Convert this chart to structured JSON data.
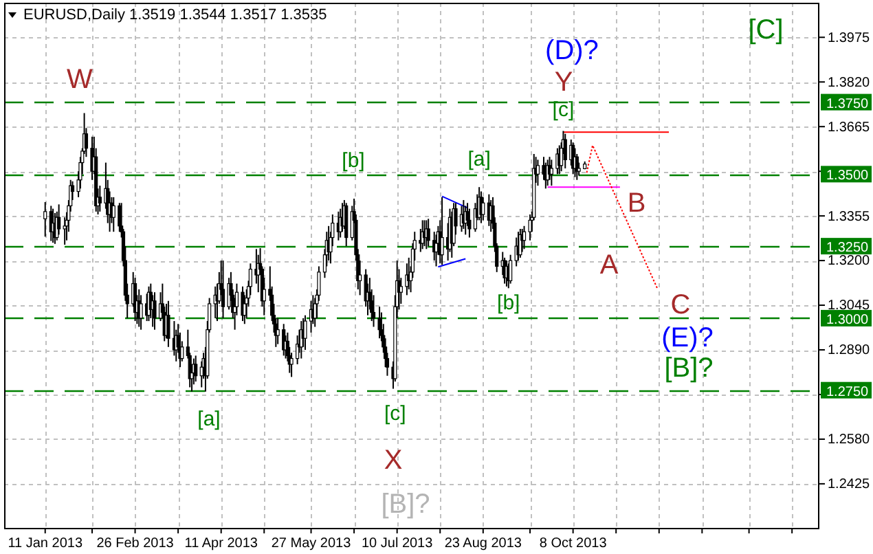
{
  "chart_data": {
    "type": "candlestick",
    "title": "EURUSD,Daily 1.3519 1.3544 1.3517 1.3535",
    "color": "#000000",
    "x": [
      "2013-01-11",
      "2013-01-14",
      "2013-01-15",
      "2013-01-16",
      "2013-01-17",
      "2013-01-18",
      "2013-01-21",
      "2013-01-22",
      "2013-01-23",
      "2013-01-24",
      "2013-01-25",
      "2013-01-28",
      "2013-01-29",
      "2013-01-30",
      "2013-01-31",
      "2013-02-01",
      "2013-02-04",
      "2013-02-05",
      "2013-02-06",
      "2013-02-07",
      "2013-02-08",
      "2013-02-11",
      "2013-02-12",
      "2013-02-13",
      "2013-02-14",
      "2013-02-15",
      "2013-02-18",
      "2013-02-19",
      "2013-02-20",
      "2013-02-21",
      "2013-02-22",
      "2013-02-25",
      "2013-02-26",
      "2013-02-27",
      "2013-02-28",
      "2013-03-01",
      "2013-03-04",
      "2013-03-05",
      "2013-03-06",
      "2013-03-07",
      "2013-03-08",
      "2013-03-11",
      "2013-03-12",
      "2013-03-13",
      "2013-03-14",
      "2013-03-15",
      "2013-03-18",
      "2013-03-19",
      "2013-03-20",
      "2013-03-21",
      "2013-03-22",
      "2013-03-25",
      "2013-03-26",
      "2013-03-27",
      "2013-03-28",
      "2013-03-29",
      "2013-04-01",
      "2013-04-02",
      "2013-04-03",
      "2013-04-04",
      "2013-04-05",
      "2013-04-08",
      "2013-04-09",
      "2013-04-10",
      "2013-04-11",
      "2013-04-12",
      "2013-04-15",
      "2013-04-16",
      "2013-04-17",
      "2013-04-18",
      "2013-04-19",
      "2013-04-22",
      "2013-04-23",
      "2013-04-24",
      "2013-04-25",
      "2013-04-26",
      "2013-04-29",
      "2013-04-30",
      "2013-05-01",
      "2013-05-02",
      "2013-05-03",
      "2013-05-06",
      "2013-05-07",
      "2013-05-08",
      "2013-05-09",
      "2013-05-10",
      "2013-05-13",
      "2013-05-14",
      "2013-05-15",
      "2013-05-16",
      "2013-05-17",
      "2013-05-20",
      "2013-05-21",
      "2013-05-22",
      "2013-05-23",
      "2013-05-24",
      "2013-05-27",
      "2013-05-28",
      "2013-05-29",
      "2013-05-30",
      "2013-05-31",
      "2013-06-03",
      "2013-06-04",
      "2013-06-05",
      "2013-06-06",
      "2013-06-07",
      "2013-06-10",
      "2013-06-11",
      "2013-06-12",
      "2013-06-13",
      "2013-06-14",
      "2013-06-17",
      "2013-06-18",
      "2013-06-19",
      "2013-06-20",
      "2013-06-21",
      "2013-06-24",
      "2013-06-25",
      "2013-06-26",
      "2013-06-27",
      "2013-06-28",
      "2013-07-01",
      "2013-07-02",
      "2013-07-03",
      "2013-07-04",
      "2013-07-05",
      "2013-07-08",
      "2013-07-09",
      "2013-07-10",
      "2013-07-11",
      "2013-07-12",
      "2013-07-15",
      "2013-07-16",
      "2013-07-17",
      "2013-07-18",
      "2013-07-19",
      "2013-07-22",
      "2013-07-23",
      "2013-07-24",
      "2013-07-25",
      "2013-07-26",
      "2013-07-29",
      "2013-07-30",
      "2013-07-31",
      "2013-08-01",
      "2013-08-02",
      "2013-08-05",
      "2013-08-06",
      "2013-08-07",
      "2013-08-08",
      "2013-08-09",
      "2013-08-12",
      "2013-08-13",
      "2013-08-14",
      "2013-08-15",
      "2013-08-16",
      "2013-08-19",
      "2013-08-20",
      "2013-08-21",
      "2013-08-22",
      "2013-08-23",
      "2013-08-26",
      "2013-08-27",
      "2013-08-28",
      "2013-08-29",
      "2013-08-30",
      "2013-09-02",
      "2013-09-03",
      "2013-09-04",
      "2013-09-05",
      "2013-09-06",
      "2013-09-09",
      "2013-09-10",
      "2013-09-11",
      "2013-09-12",
      "2013-09-13",
      "2013-09-16",
      "2013-09-17",
      "2013-09-18",
      "2013-09-19",
      "2013-09-20",
      "2013-09-23",
      "2013-09-24",
      "2013-09-25",
      "2013-09-26",
      "2013-09-27",
      "2013-09-30",
      "2013-10-01",
      "2013-10-02",
      "2013-10-03",
      "2013-10-04",
      "2013-10-07",
      "2013-10-08",
      "2013-10-09",
      "2013-10-10",
      "2013-10-11",
      "2013-10-14"
    ],
    "ohlc": [
      [
        1.3345,
        1.3403,
        1.3283,
        1.337
      ],
      [
        1.337,
        1.339,
        1.3268,
        1.33
      ],
      [
        1.33,
        1.338,
        1.3262,
        1.333
      ],
      [
        1.333,
        1.3365,
        1.3258,
        1.328
      ],
      [
        1.328,
        1.337,
        1.327,
        1.335
      ],
      [
        1.335,
        1.3395,
        1.329,
        1.331
      ],
      [
        1.331,
        1.335,
        1.3255,
        1.332
      ],
      [
        1.332,
        1.3368,
        1.327,
        1.334
      ],
      [
        1.334,
        1.341,
        1.33,
        1.339
      ],
      [
        1.339,
        1.348,
        1.337,
        1.346
      ],
      [
        1.346,
        1.3475,
        1.341,
        1.344
      ],
      [
        1.344,
        1.351,
        1.342,
        1.348
      ],
      [
        1.348,
        1.356,
        1.345,
        1.354
      ],
      [
        1.354,
        1.359,
        1.35,
        1.358
      ],
      [
        1.358,
        1.3712,
        1.357,
        1.364
      ],
      [
        1.364,
        1.366,
        1.356,
        1.359
      ],
      [
        1.359,
        1.363,
        1.348,
        1.351
      ],
      [
        1.351,
        1.363,
        1.35,
        1.356
      ],
      [
        1.356,
        1.359,
        1.337,
        1.339
      ],
      [
        1.339,
        1.345,
        1.336,
        1.342
      ],
      [
        1.342,
        1.346,
        1.337,
        1.34
      ],
      [
        1.34,
        1.354,
        1.338,
        1.345
      ],
      [
        1.345,
        1.348,
        1.333,
        1.336
      ],
      [
        1.336,
        1.344,
        1.33,
        1.34
      ],
      [
        1.34,
        1.342,
        1.333,
        1.335
      ],
      [
        1.335,
        1.342,
        1.33,
        1.339
      ],
      [
        1.339,
        1.34,
        1.33,
        1.332
      ],
      [
        1.332,
        1.34,
        1.328,
        1.33
      ],
      [
        1.33,
        1.331,
        1.318,
        1.32
      ],
      [
        1.32,
        1.325,
        1.306,
        1.308
      ],
      [
        1.308,
        1.312,
        1.3,
        1.305
      ],
      [
        1.305,
        1.316,
        1.304,
        1.312
      ],
      [
        1.312,
        1.314,
        1.299,
        1.302
      ],
      [
        1.302,
        1.308,
        1.298,
        1.306
      ],
      [
        1.306,
        1.31,
        1.297,
        1.3
      ],
      [
        1.3,
        1.308,
        1.296,
        1.305
      ],
      [
        1.305,
        1.3085,
        1.299,
        1.301
      ],
      [
        1.301,
        1.311,
        1.299,
        1.309
      ],
      [
        1.309,
        1.312,
        1.3,
        1.303
      ],
      [
        1.303,
        1.308,
        1.297,
        1.306
      ],
      [
        1.306,
        1.309,
        1.296,
        1.3
      ],
      [
        1.3,
        1.309,
        1.299,
        1.305
      ],
      [
        1.305,
        1.312,
        1.3,
        1.302
      ],
      [
        1.302,
        1.304,
        1.292,
        1.294
      ],
      [
        1.294,
        1.305,
        1.293,
        1.301
      ],
      [
        1.301,
        1.306,
        1.29,
        1.293
      ],
      [
        1.293,
        1.299,
        1.287,
        1.289
      ],
      [
        1.289,
        1.296,
        1.285,
        1.294
      ],
      [
        1.294,
        1.298,
        1.288,
        1.29
      ],
      [
        1.29,
        1.295,
        1.283,
        1.286
      ],
      [
        1.286,
        1.292,
        1.285,
        1.29
      ],
      [
        1.29,
        1.296,
        1.286,
        1.287
      ],
      [
        1.287,
        1.288,
        1.276,
        1.279
      ],
      [
        1.279,
        1.284,
        1.2745,
        1.281
      ],
      [
        1.281,
        1.286,
        1.277,
        1.284
      ],
      [
        1.284,
        1.287,
        1.278,
        1.28
      ],
      [
        1.28,
        1.285,
        1.276,
        1.283
      ],
      [
        1.283,
        1.288,
        1.279,
        1.286
      ],
      [
        1.286,
        1.29,
        1.2745,
        1.28
      ],
      [
        1.28,
        1.299,
        1.279,
        1.296
      ],
      [
        1.296,
        1.307,
        1.295,
        1.305
      ],
      [
        1.305,
        1.311,
        1.3,
        1.308
      ],
      [
        1.308,
        1.312,
        1.299,
        1.306
      ],
      [
        1.306,
        1.316,
        1.305,
        1.312
      ],
      [
        1.312,
        1.32,
        1.308,
        1.31
      ],
      [
        1.31,
        1.32,
        1.3,
        1.304
      ],
      [
        1.304,
        1.314,
        1.303,
        1.312
      ],
      [
        1.312,
        1.316,
        1.306,
        1.308
      ],
      [
        1.308,
        1.31,
        1.3,
        1.302
      ],
      [
        1.302,
        1.307,
        1.296,
        1.304
      ],
      [
        1.304,
        1.312,
        1.301,
        1.309
      ],
      [
        1.309,
        1.311,
        1.299,
        1.301
      ],
      [
        1.301,
        1.308,
        1.298,
        1.305
      ],
      [
        1.305,
        1.31,
        1.3,
        1.307
      ],
      [
        1.307,
        1.313,
        1.304,
        1.311
      ],
      [
        1.311,
        1.319,
        1.308,
        1.317
      ],
      [
        1.317,
        1.324,
        1.312,
        1.315
      ],
      [
        1.315,
        1.322,
        1.309,
        1.319
      ],
      [
        1.319,
        1.3243,
        1.315,
        1.317
      ],
      [
        1.317,
        1.318,
        1.304,
        1.306
      ],
      [
        1.306,
        1.314,
        1.301,
        1.31
      ],
      [
        1.31,
        1.318,
        1.306,
        1.308
      ],
      [
        1.308,
        1.311,
        1.299,
        1.301
      ],
      [
        1.301,
        1.305,
        1.295,
        1.298
      ],
      [
        1.298,
        1.3,
        1.29,
        1.294
      ],
      [
        1.294,
        1.3,
        1.291,
        1.296
      ],
      [
        1.296,
        1.298,
        1.287,
        1.289
      ],
      [
        1.289,
        1.294,
        1.286,
        1.292
      ],
      [
        1.292,
        1.295,
        1.285,
        1.287
      ],
      [
        1.287,
        1.29,
        1.281,
        1.284
      ],
      [
        1.284,
        1.288,
        1.2796,
        1.286
      ],
      [
        1.286,
        1.294,
        1.284,
        1.291
      ],
      [
        1.291,
        1.296,
        1.288,
        1.29
      ],
      [
        1.29,
        1.299,
        1.286,
        1.296
      ],
      [
        1.296,
        1.3,
        1.29,
        1.293
      ],
      [
        1.293,
        1.301,
        1.289,
        1.299
      ],
      [
        1.299,
        1.306,
        1.295,
        1.303
      ],
      [
        1.303,
        1.308,
        1.298,
        1.3
      ],
      [
        1.3,
        1.307,
        1.297,
        1.305
      ],
      [
        1.305,
        1.31,
        1.3,
        1.308
      ],
      [
        1.308,
        1.318,
        1.306,
        1.316
      ],
      [
        1.316,
        1.324,
        1.314,
        1.322
      ],
      [
        1.322,
        1.33,
        1.318,
        1.327
      ],
      [
        1.327,
        1.332,
        1.32,
        1.323
      ],
      [
        1.323,
        1.33,
        1.319,
        1.328
      ],
      [
        1.328,
        1.336,
        1.325,
        1.333
      ],
      [
        1.333,
        1.337,
        1.327,
        1.33
      ],
      [
        1.33,
        1.338,
        1.328,
        1.335
      ],
      [
        1.335,
        1.34,
        1.33,
        1.332
      ],
      [
        1.332,
        1.341,
        1.331,
        1.339
      ],
      [
        1.339,
        1.34,
        1.325,
        1.328
      ],
      [
        1.328,
        1.339,
        1.327,
        1.337
      ],
      [
        1.337,
        1.3415,
        1.333,
        1.334
      ],
      [
        1.334,
        1.336,
        1.32,
        1.322
      ],
      [
        1.322,
        1.324,
        1.31,
        1.313
      ],
      [
        1.313,
        1.32,
        1.308,
        1.315
      ],
      [
        1.315,
        1.317,
        1.304,
        1.306
      ],
      [
        1.306,
        1.312,
        1.301,
        1.309
      ],
      [
        1.309,
        1.314,
        1.303,
        1.306
      ],
      [
        1.306,
        1.31,
        1.299,
        1.302
      ],
      [
        1.302,
        1.308,
        1.297,
        1.3
      ],
      [
        1.3,
        1.304,
        1.293,
        1.296
      ],
      [
        1.296,
        1.302,
        1.292,
        1.294
      ],
      [
        1.294,
        1.298,
        1.288,
        1.29
      ],
      [
        1.29,
        1.293,
        1.283,
        1.286
      ],
      [
        1.286,
        1.288,
        1.28,
        1.283
      ],
      [
        1.283,
        1.285,
        1.2755,
        1.279
      ],
      [
        1.279,
        1.308,
        1.278,
        1.304
      ],
      [
        1.304,
        1.32,
        1.3,
        1.313
      ],
      [
        1.313,
        1.317,
        1.303,
        1.309
      ],
      [
        1.309,
        1.314,
        1.305,
        1.311
      ],
      [
        1.311,
        1.319,
        1.308,
        1.315
      ],
      [
        1.315,
        1.321,
        1.31,
        1.313
      ],
      [
        1.313,
        1.318,
        1.309,
        1.316
      ],
      [
        1.316,
        1.326,
        1.314,
        1.324
      ],
      [
        1.324,
        1.33,
        1.32,
        1.327
      ],
      [
        1.327,
        1.331,
        1.323,
        1.326
      ],
      [
        1.326,
        1.334,
        1.324,
        1.33
      ],
      [
        1.33,
        1.334,
        1.325,
        1.328
      ],
      [
        1.328,
        1.334,
        1.324,
        1.331
      ],
      [
        1.331,
        1.3345,
        1.325,
        1.327
      ],
      [
        1.327,
        1.33,
        1.32,
        1.323
      ],
      [
        1.323,
        1.329,
        1.318,
        1.326
      ],
      [
        1.326,
        1.332,
        1.322,
        1.33
      ],
      [
        1.33,
        1.334,
        1.319,
        1.322
      ],
      [
        1.322,
        1.342,
        1.3185,
        1.328
      ],
      [
        1.328,
        1.333,
        1.32,
        1.324
      ],
      [
        1.324,
        1.338,
        1.323,
        1.335
      ],
      [
        1.335,
        1.337,
        1.321,
        1.326
      ],
      [
        1.326,
        1.34,
        1.325,
        1.338
      ],
      [
        1.338,
        1.34,
        1.329,
        1.332
      ],
      [
        1.332,
        1.339,
        1.33,
        1.336
      ],
      [
        1.336,
        1.341,
        1.331,
        1.333
      ],
      [
        1.333,
        1.339,
        1.329,
        1.337
      ],
      [
        1.337,
        1.34,
        1.332,
        1.334
      ],
      [
        1.334,
        1.338,
        1.328,
        1.331
      ],
      [
        1.331,
        1.34,
        1.33,
        1.338
      ],
      [
        1.338,
        1.343,
        1.334,
        1.335
      ],
      [
        1.335,
        1.3455,
        1.334,
        1.342
      ],
      [
        1.342,
        1.344,
        1.333,
        1.336
      ],
      [
        1.336,
        1.342,
        1.334,
        1.34
      ],
      [
        1.34,
        1.343,
        1.332,
        1.334
      ],
      [
        1.334,
        1.341,
        1.33,
        1.339
      ],
      [
        1.339,
        1.342,
        1.331,
        1.333
      ],
      [
        1.333,
        1.335,
        1.323,
        1.325
      ],
      [
        1.325,
        1.326,
        1.316,
        1.318
      ],
      [
        1.318,
        1.323,
        1.315,
        1.32
      ],
      [
        1.32,
        1.321,
        1.312,
        1.314
      ],
      [
        1.314,
        1.32,
        1.311,
        1.318
      ],
      [
        1.318,
        1.319,
        1.3104,
        1.313
      ],
      [
        1.313,
        1.322,
        1.312,
        1.32
      ],
      [
        1.32,
        1.328,
        1.318,
        1.325
      ],
      [
        1.325,
        1.33,
        1.32,
        1.322
      ],
      [
        1.322,
        1.331,
        1.321,
        1.329
      ],
      [
        1.329,
        1.331,
        1.323,
        1.327
      ],
      [
        1.327,
        1.332,
        1.324,
        1.33
      ],
      [
        1.33,
        1.336,
        1.327,
        1.334
      ],
      [
        1.334,
        1.337,
        1.33,
        1.335
      ],
      [
        1.335,
        1.357,
        1.334,
        1.352
      ],
      [
        1.352,
        1.356,
        1.347,
        1.35
      ],
      [
        1.35,
        1.355,
        1.346,
        1.353
      ],
      [
        1.353,
        1.356,
        1.348,
        1.35
      ],
      [
        1.35,
        1.354,
        1.345,
        1.348
      ],
      [
        1.348,
        1.355,
        1.346,
        1.353
      ],
      [
        1.353,
        1.356,
        1.348,
        1.35
      ],
      [
        1.35,
        1.355,
        1.346,
        1.352
      ],
      [
        1.352,
        1.359,
        1.35,
        1.357
      ],
      [
        1.357,
        1.36,
        1.35,
        1.353
      ],
      [
        1.353,
        1.361,
        1.351,
        1.359
      ],
      [
        1.359,
        1.365,
        1.357,
        1.362
      ],
      [
        1.362,
        1.364,
        1.352,
        1.355
      ],
      [
        1.355,
        1.362,
        1.353,
        1.36
      ],
      [
        1.36,
        1.361,
        1.35,
        1.352
      ],
      [
        1.352,
        1.359,
        1.349,
        1.356
      ],
      [
        1.356,
        1.357,
        1.348,
        1.351
      ],
      [
        1.351,
        1.354,
        1.3495,
        1.352
      ],
      [
        1.3519,
        1.3544,
        1.3517,
        1.3535
      ]
    ],
    "series": [
      {
        "type": "line",
        "color": "#ff0000",
        "line_style": "solid",
        "x": [
          "2013-10-03",
          "2013-11-26"
        ],
        "values": [
          1.3646,
          1.3646
        ]
      },
      {
        "type": "line",
        "color": "#ff00ff",
        "line_style": "solid",
        "x": [
          "2013-09-25",
          "2013-11-01"
        ],
        "values": [
          1.3455,
          1.3455
        ]
      },
      {
        "type": "line",
        "color": "#ff0000",
        "line_style": "dotted",
        "x": [
          "2013-10-15",
          "2013-10-18",
          "2013-11-20"
        ],
        "values": [
          1.3505,
          1.36,
          1.3105
        ]
      },
      {
        "type": "line",
        "color": "#0000ff",
        "line_style": "solid",
        "x": [
          "2013-08-02",
          "2013-08-15"
        ],
        "values": [
          1.3423,
          1.3383
        ]
      },
      {
        "type": "line",
        "color": "#0000ff",
        "line_style": "solid",
        "x": [
          "2013-07-31",
          "2013-08-14"
        ],
        "values": [
          1.3178,
          1.3206
        ]
      }
    ],
    "xlim": [
      "2012-12-21",
      "2014-02-11"
    ],
    "xticks": [
      {
        "value": "2013-01-11",
        "label": "11 Jan 2013"
      },
      {
        "value": "2013-02-04",
        "label": null
      },
      {
        "value": "2013-02-26",
        "label": "26 Feb 2013"
      },
      {
        "value": "2013-03-20",
        "label": null
      },
      {
        "value": "2013-04-11",
        "label": "11 Apr 2013"
      },
      {
        "value": "2013-05-03",
        "label": null
      },
      {
        "value": "2013-05-27",
        "label": "27 May 2013"
      },
      {
        "value": "2013-06-18",
        "label": null
      },
      {
        "value": "2013-07-10",
        "label": "10 Jul 2013"
      },
      {
        "value": "2013-08-01",
        "label": null
      },
      {
        "value": "2013-08-23",
        "label": "23 Aug 2013"
      },
      {
        "value": "2013-09-16",
        "label": null
      },
      {
        "value": "2013-10-08",
        "label": "8 Oct 2013"
      },
      {
        "value": "2013-10-30",
        "label": null
      },
      {
        "value": "2013-11-21",
        "label": null
      },
      {
        "value": "2013-12-13",
        "label": null
      },
      {
        "value": "2014-01-06",
        "label": null
      },
      {
        "value": "2014-01-28",
        "label": null
      }
    ],
    "ylim": [
      1.2272,
      1.4095
    ],
    "yticks": [
      1.3975,
      {
        "value": 1.382,
        "label": "1.3820"
      },
      1.3665,
      {
        "value": 1.351,
        "label": null
      },
      1.3355,
      {
        "value": 1.32,
        "label": "1.3200"
      },
      1.3045,
      {
        "value": 1.289,
        "label": "1.2890"
      },
      {
        "value": 1.2735,
        "label": null
      },
      {
        "value": 1.258,
        "label": "1.2580"
      },
      1.2425
    ],
    "grid": true,
    "ref_lines": [
      {
        "axis": "y",
        "value": 1.375,
        "label": "1.3750",
        "color": "#008000",
        "line_style": "dashed"
      },
      {
        "axis": "y",
        "value": 1.35,
        "label": "1.3500",
        "color": "#008000",
        "line_style": "dashed"
      },
      {
        "axis": "y",
        "value": 1.325,
        "label": "1.3250",
        "color": "#008000",
        "line_style": "dashed"
      },
      {
        "axis": "y",
        "value": 1.3,
        "label": "1.3000",
        "color": "#008000",
        "line_style": "dashed"
      },
      {
        "axis": "y",
        "value": 1.275,
        "label": "1.2750",
        "color": "#008000",
        "line_style": "dashed"
      }
    ],
    "annotations": [
      "W",
      "[a]",
      "[b]",
      {
        "text": "[c]",
        "x": "2013-07-09",
        "y": 1.2755
      },
      "X",
      "[B]?",
      {
        "text": "[a]",
        "x": "2013-08-21",
        "y": 1.3455
      },
      {
        "text": "[b]",
        "x": "2013-09-05",
        "y": 1.3104
      },
      {
        "text": "[c]",
        "x": "2013-10-03",
        "y": 1.365
      },
      "Y",
      "(D)?",
      "A",
      "B",
      "C",
      "(E)?",
      "[B]?",
      "[C]"
    ]
  }
}
